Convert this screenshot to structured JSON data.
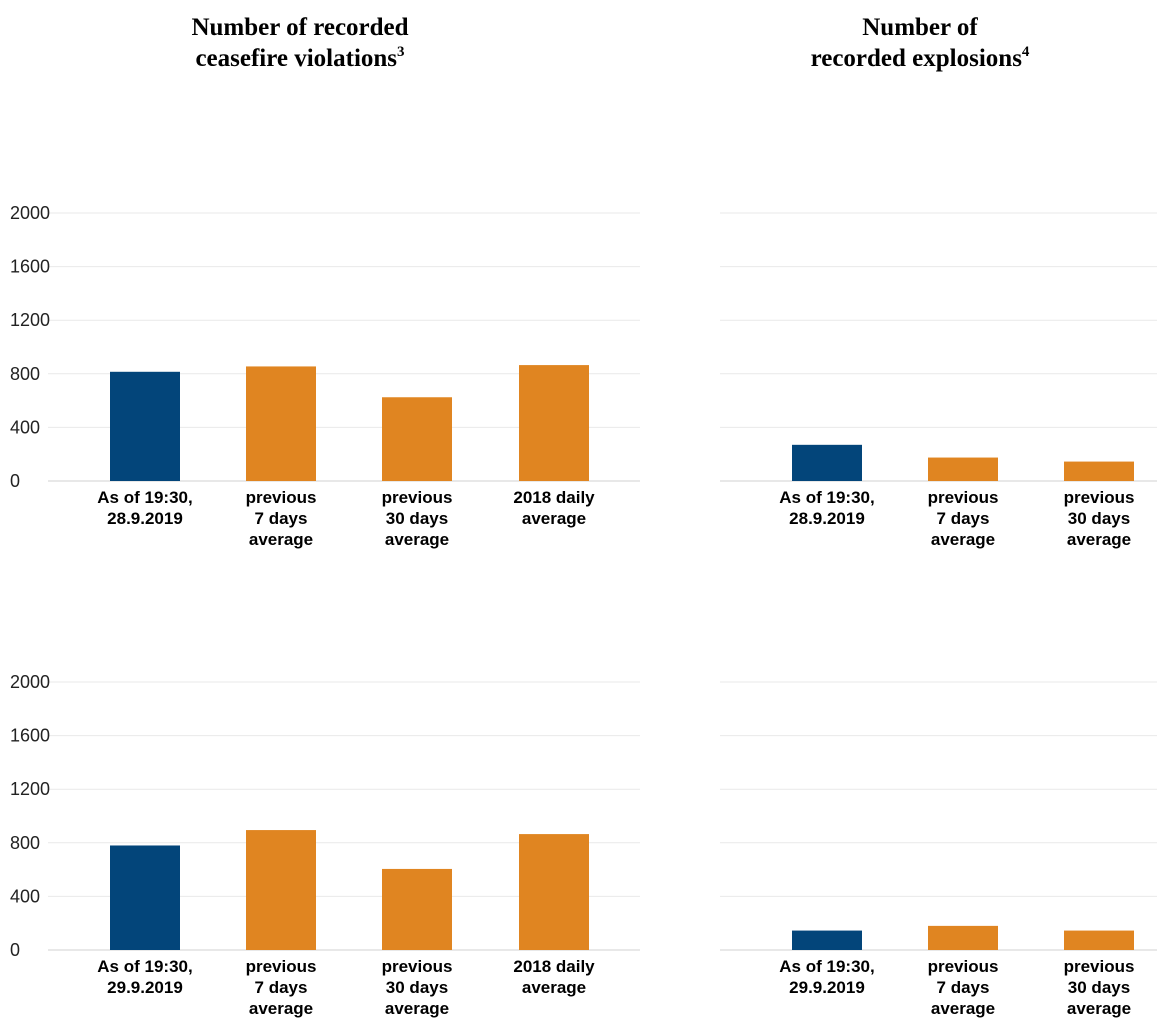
{
  "headings": {
    "ceasefire": {
      "line1": "Number of recorded",
      "line2": "ceasefire violations",
      "note": "3"
    },
    "explosions": {
      "line1": "Number of",
      "line2": "recorded explosions",
      "note": "4"
    }
  },
  "colors": {
    "current": "#03457a",
    "average": "#e08521",
    "grid": "#e9e9e9",
    "axis": "#d0d0d0"
  },
  "chart_data": [
    {
      "id": "cv-row1",
      "type": "bar",
      "categories": [
        [
          "As of 19:30,",
          "28.9.2019"
        ],
        [
          "previous",
          "7 days",
          "average"
        ],
        [
          "previous",
          "30 days",
          "average"
        ],
        [
          "2018 daily",
          "average"
        ]
      ],
      "values": [
        815,
        855,
        625,
        865
      ],
      "ylim": [
        0,
        2000
      ],
      "yticks": [
        0,
        400,
        800,
        1200,
        1600,
        2000
      ],
      "grid": true
    },
    {
      "id": "ex-row1",
      "type": "bar",
      "categories": [
        [
          "As of 19:30,",
          "28.9.2019"
        ],
        [
          "previous",
          "7 days",
          "average"
        ],
        [
          "previous",
          "30 days",
          "average"
        ]
      ],
      "values": [
        270,
        175,
        145
      ],
      "ylim": [
        0,
        2000
      ],
      "yticks": [
        0,
        400,
        800,
        1200,
        1600,
        2000
      ],
      "grid": true
    },
    {
      "id": "cv-row2",
      "type": "bar",
      "categories": [
        [
          "As of 19:30,",
          "29.9.2019"
        ],
        [
          "previous",
          "7 days",
          "average"
        ],
        [
          "previous",
          "30 days",
          "average"
        ],
        [
          "2018 daily",
          "average"
        ]
      ],
      "values": [
        780,
        895,
        605,
        865
      ],
      "ylim": [
        0,
        2000
      ],
      "yticks": [
        0,
        400,
        800,
        1200,
        1600,
        2000
      ],
      "grid": true
    },
    {
      "id": "ex-row2",
      "type": "bar",
      "categories": [
        [
          "As of 19:30,",
          "29.9.2019"
        ],
        [
          "previous",
          "7 days",
          "average"
        ],
        [
          "previous",
          "30 days",
          "average"
        ]
      ],
      "values": [
        145,
        180,
        145
      ],
      "ylim": [
        0,
        2000
      ],
      "yticks": [
        0,
        400,
        800,
        1200,
        1600,
        2000
      ],
      "grid": true
    }
  ]
}
